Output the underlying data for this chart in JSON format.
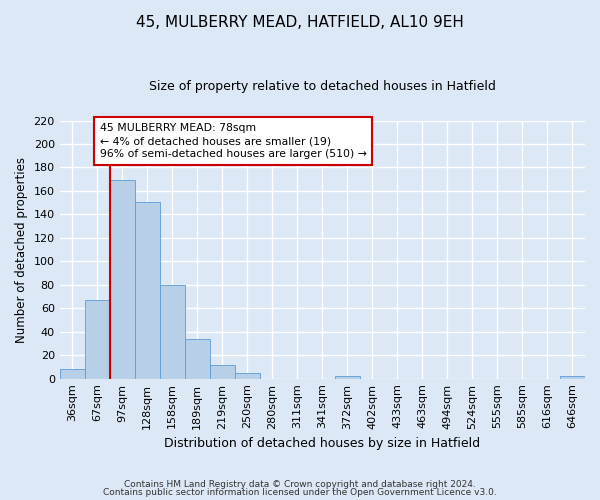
{
  "title": "45, MULBERRY MEAD, HATFIELD, AL10 9EH",
  "subtitle": "Size of property relative to detached houses in Hatfield",
  "xlabel": "Distribution of detached houses by size in Hatfield",
  "ylabel": "Number of detached properties",
  "bin_labels": [
    "36sqm",
    "67sqm",
    "97sqm",
    "128sqm",
    "158sqm",
    "189sqm",
    "219sqm",
    "250sqm",
    "280sqm",
    "311sqm",
    "341sqm",
    "372sqm",
    "402sqm",
    "433sqm",
    "463sqm",
    "494sqm",
    "524sqm",
    "555sqm",
    "585sqm",
    "616sqm",
    "646sqm"
  ],
  "bar_values": [
    8,
    67,
    169,
    151,
    80,
    34,
    12,
    5,
    0,
    0,
    0,
    2,
    0,
    0,
    0,
    0,
    0,
    0,
    0,
    0,
    2
  ],
  "bar_color": "#b8cfe8",
  "bar_edge_color": "#5b9bd5",
  "vline_x_index": 1,
  "vline_color": "#cc0000",
  "annotation_text": "45 MULBERRY MEAD: 78sqm\n← 4% of detached houses are smaller (19)\n96% of semi-detached houses are larger (510) →",
  "annotation_box_color": "#ffffff",
  "annotation_box_edge_color": "#cc0000",
  "ylim": [
    0,
    220
  ],
  "yticks": [
    0,
    20,
    40,
    60,
    80,
    100,
    120,
    140,
    160,
    180,
    200,
    220
  ],
  "footer_line1": "Contains HM Land Registry data © Crown copyright and database right 2024.",
  "footer_line2": "Contains public sector information licensed under the Open Government Licence v3.0.",
  "bg_color": "#dce8f5",
  "grid_color": "#ffffff"
}
